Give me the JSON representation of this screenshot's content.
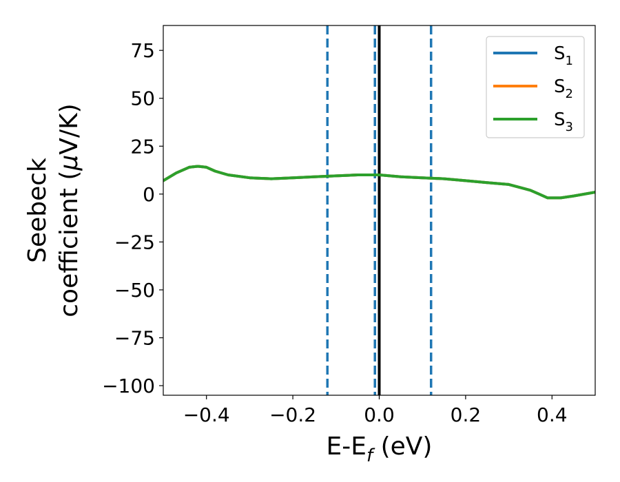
{
  "chart_data": {
    "type": "line",
    "xlabel": {
      "main": "E-E",
      "sub": "f",
      "unit": " (eV)"
    },
    "ylabel": {
      "line1": "Seebeck",
      "line2_prefix": "coefficient  (",
      "line2_mu": "μ",
      "line2_suffix": "V/K)"
    },
    "xlim": [
      -0.5,
      0.5
    ],
    "ylim": [
      -105,
      88
    ],
    "xticks": [
      -0.4,
      -0.2,
      0.0,
      0.2,
      0.4
    ],
    "xtick_labels": [
      "−0.4",
      "−0.2",
      "0.0",
      "0.2",
      "0.4"
    ],
    "yticks": [
      75,
      50,
      25,
      0,
      -25,
      -50,
      -75,
      -100
    ],
    "ytick_labels": [
      "75",
      "50",
      "25",
      "0",
      "−25",
      "−50",
      "−75",
      "−100"
    ],
    "grid": false,
    "legend_position": "top-right",
    "x": [
      -0.5,
      -0.47,
      -0.44,
      -0.42,
      -0.4,
      -0.38,
      -0.35,
      -0.3,
      -0.25,
      -0.2,
      -0.15,
      -0.1,
      -0.05,
      0.0,
      0.05,
      0.1,
      0.15,
      0.2,
      0.25,
      0.3,
      0.35,
      0.37,
      0.39,
      0.42,
      0.45,
      0.5
    ],
    "series": [
      {
        "name": "S",
        "sub": "1",
        "color": "#1f77b4",
        "values": [
          7,
          11,
          14,
          14.5,
          14,
          12,
          10,
          8.5,
          8,
          8.5,
          9,
          9.5,
          10,
          10,
          9,
          8.5,
          8,
          7,
          6,
          5,
          2,
          0,
          -2,
          -2,
          -1,
          1
        ]
      },
      {
        "name": "S",
        "sub": "2",
        "color": "#ff7f0e",
        "values": [
          7,
          11,
          14,
          14.5,
          14,
          12,
          10,
          8.5,
          8,
          8.5,
          9,
          9.5,
          10,
          10,
          9,
          8.5,
          8,
          7,
          6,
          5,
          2,
          0,
          -2,
          -2,
          -1,
          1
        ]
      },
      {
        "name": "S",
        "sub": "3",
        "color": "#2ca02c",
        "values": [
          7,
          11,
          14,
          14.5,
          14,
          12,
          10,
          8.5,
          8,
          8.5,
          9,
          9.5,
          10,
          10,
          9,
          8.5,
          8,
          7,
          6,
          5,
          2,
          0,
          -2,
          -2,
          -1,
          1
        ]
      }
    ],
    "vlines": [
      {
        "x": -0.12,
        "style": "dashed",
        "color": "#1f77b4"
      },
      {
        "x": -0.01,
        "style": "dashed",
        "color": "#1f77b4"
      },
      {
        "x": 0.12,
        "style": "dashed",
        "color": "#1f77b4"
      },
      {
        "x": 0.0,
        "style": "solid",
        "color": "#000000"
      }
    ]
  }
}
